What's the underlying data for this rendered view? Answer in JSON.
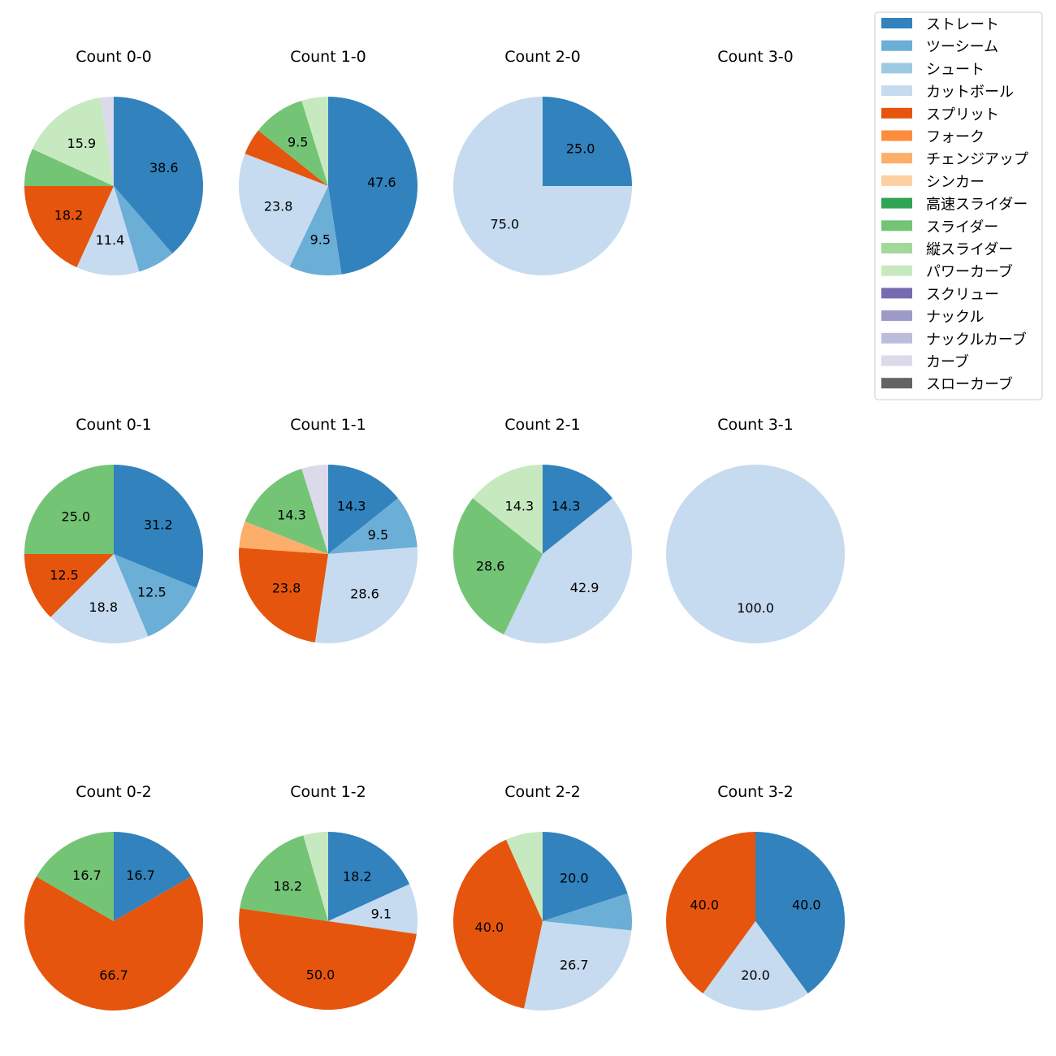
{
  "chart_data": {
    "type": "pie",
    "legend_position": "top-right",
    "legend": [
      {
        "name": "ストレート",
        "color": "#3182bd"
      },
      {
        "name": "ツーシーム",
        "color": "#6baed6"
      },
      {
        "name": "シュート",
        "color": "#9ecae1"
      },
      {
        "name": "カットボール",
        "color": "#c6dbef"
      },
      {
        "name": "スプリット",
        "color": "#e6550d"
      },
      {
        "name": "フォーク",
        "color": "#fd8d3c"
      },
      {
        "name": "チェンジアップ",
        "color": "#fdae6b"
      },
      {
        "name": "シンカー",
        "color": "#fdd0a2"
      },
      {
        "name": "高速スライダー",
        "color": "#31a354"
      },
      {
        "name": "スライダー",
        "color": "#74c476"
      },
      {
        "name": "縦スライダー",
        "color": "#a1d99b"
      },
      {
        "name": "パワーカーブ",
        "color": "#c7e9c0"
      },
      {
        "name": "スクリュー",
        "color": "#756bb1"
      },
      {
        "name": "ナックル",
        "color": "#9e9ac8"
      },
      {
        "name": "ナックルカーブ",
        "color": "#bcbddc"
      },
      {
        "name": "カーブ",
        "color": "#dadaeb"
      },
      {
        "name": "スローカーブ",
        "color": "#636363"
      }
    ],
    "panels": [
      {
        "title": "Count 0-0",
        "slices": [
          {
            "name": "ストレート",
            "value": 38.6,
            "label": "38.6"
          },
          {
            "name": "ツーシーム",
            "value": 6.8,
            "label": ""
          },
          {
            "name": "カットボール",
            "value": 11.4,
            "label": "11.4"
          },
          {
            "name": "スプリット",
            "value": 18.2,
            "label": "18.2"
          },
          {
            "name": "スライダー",
            "value": 6.8,
            "label": ""
          },
          {
            "name": "パワーカーブ",
            "value": 15.9,
            "label": "15.9"
          },
          {
            "name": "カーブ",
            "value": 2.3,
            "label": ""
          }
        ]
      },
      {
        "title": "Count 1-0",
        "slices": [
          {
            "name": "ストレート",
            "value": 47.6,
            "label": "47.6"
          },
          {
            "name": "ツーシーム",
            "value": 9.5,
            "label": "9.5"
          },
          {
            "name": "カットボール",
            "value": 23.8,
            "label": "23.8"
          },
          {
            "name": "スプリット",
            "value": 4.8,
            "label": ""
          },
          {
            "name": "スライダー",
            "value": 9.5,
            "label": "9.5"
          },
          {
            "name": "パワーカーブ",
            "value": 4.8,
            "label": ""
          }
        ]
      },
      {
        "title": "Count 2-0",
        "slices": [
          {
            "name": "ストレート",
            "value": 25.0,
            "label": "25.0"
          },
          {
            "name": "カットボール",
            "value": 75.0,
            "label": "75.0"
          }
        ]
      },
      {
        "title": "Count 3-0",
        "slices": []
      },
      {
        "title": "Count 0-1",
        "slices": [
          {
            "name": "ストレート",
            "value": 31.2,
            "label": "31.2"
          },
          {
            "name": "ツーシーム",
            "value": 12.5,
            "label": "12.5"
          },
          {
            "name": "カットボール",
            "value": 18.8,
            "label": "18.8"
          },
          {
            "name": "スプリット",
            "value": 12.5,
            "label": "12.5"
          },
          {
            "name": "スライダー",
            "value": 25.0,
            "label": "25.0"
          }
        ]
      },
      {
        "title": "Count 1-1",
        "slices": [
          {
            "name": "ストレート",
            "value": 14.3,
            "label": "14.3"
          },
          {
            "name": "ツーシーム",
            "value": 9.5,
            "label": "9.5"
          },
          {
            "name": "カットボール",
            "value": 28.6,
            "label": "28.6"
          },
          {
            "name": "スプリット",
            "value": 23.8,
            "label": "23.8"
          },
          {
            "name": "チェンジアップ",
            "value": 4.8,
            "label": ""
          },
          {
            "name": "スライダー",
            "value": 14.3,
            "label": "14.3"
          },
          {
            "name": "カーブ",
            "value": 4.8,
            "label": ""
          }
        ]
      },
      {
        "title": "Count 2-1",
        "slices": [
          {
            "name": "ストレート",
            "value": 14.3,
            "label": "14.3"
          },
          {
            "name": "カットボール",
            "value": 42.9,
            "label": "42.9"
          },
          {
            "name": "スライダー",
            "value": 28.6,
            "label": "28.6"
          },
          {
            "name": "パワーカーブ",
            "value": 14.3,
            "label": "14.3"
          }
        ]
      },
      {
        "title": "Count 3-1",
        "slices": [
          {
            "name": "カットボール",
            "value": 100.0,
            "label": "100.0"
          }
        ]
      },
      {
        "title": "Count 0-2",
        "slices": [
          {
            "name": "ストレート",
            "value": 16.7,
            "label": "16.7"
          },
          {
            "name": "スプリット",
            "value": 66.7,
            "label": "66.7"
          },
          {
            "name": "スライダー",
            "value": 16.7,
            "label": "16.7"
          }
        ]
      },
      {
        "title": "Count 1-2",
        "slices": [
          {
            "name": "ストレート",
            "value": 18.2,
            "label": "18.2"
          },
          {
            "name": "カットボール",
            "value": 9.1,
            "label": "9.1"
          },
          {
            "name": "スプリット",
            "value": 50.0,
            "label": "50.0"
          },
          {
            "name": "スライダー",
            "value": 18.2,
            "label": "18.2"
          },
          {
            "name": "パワーカーブ",
            "value": 4.5,
            "label": ""
          }
        ]
      },
      {
        "title": "Count 2-2",
        "slices": [
          {
            "name": "ストレート",
            "value": 20.0,
            "label": "20.0"
          },
          {
            "name": "ツーシーム",
            "value": 6.7,
            "label": ""
          },
          {
            "name": "カットボール",
            "value": 26.7,
            "label": "26.7"
          },
          {
            "name": "スプリット",
            "value": 40.0,
            "label": "40.0"
          },
          {
            "name": "パワーカーブ",
            "value": 6.7,
            "label": ""
          }
        ]
      },
      {
        "title": "Count 3-2",
        "slices": [
          {
            "name": "ストレート",
            "value": 40.0,
            "label": "40.0"
          },
          {
            "name": "カットボール",
            "value": 20.0,
            "label": "20.0"
          },
          {
            "name": "スプリット",
            "value": 40.0,
            "label": "40.0"
          }
        ]
      }
    ]
  }
}
